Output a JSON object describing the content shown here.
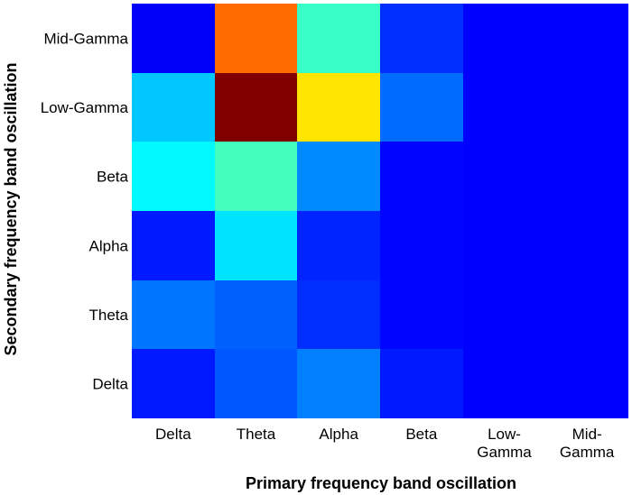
{
  "chart_data": {
    "type": "heatmap",
    "title": "",
    "xlabel": "Primary frequency band oscillation",
    "ylabel": "Secondary frequency band oscillation",
    "x_categories": [
      [
        "Delta"
      ],
      [
        "Theta"
      ],
      [
        "Alpha"
      ],
      [
        "Beta"
      ],
      [
        "Low-",
        "Gamma"
      ],
      [
        "Mid-",
        "Gamma"
      ]
    ],
    "y_categories": [
      "Mid-Gamma",
      "Low-Gamma",
      "Beta",
      "Alpha",
      "Theta",
      "Delta"
    ],
    "value_range": [
      0,
      1
    ],
    "colormap": "jet",
    "grid": false,
    "values": [
      [
        0.12,
        0.77,
        0.43,
        0.17,
        0.125,
        0.125
      ],
      [
        0.32,
        1.0,
        0.65,
        0.23,
        0.125,
        0.125
      ],
      [
        0.37,
        0.44,
        0.26,
        0.13,
        0.125,
        0.125
      ],
      [
        0.15,
        0.35,
        0.16,
        0.13,
        0.125,
        0.125
      ],
      [
        0.24,
        0.22,
        0.17,
        0.13,
        0.125,
        0.125
      ],
      [
        0.15,
        0.21,
        0.25,
        0.15,
        0.125,
        0.125
      ]
    ]
  }
}
